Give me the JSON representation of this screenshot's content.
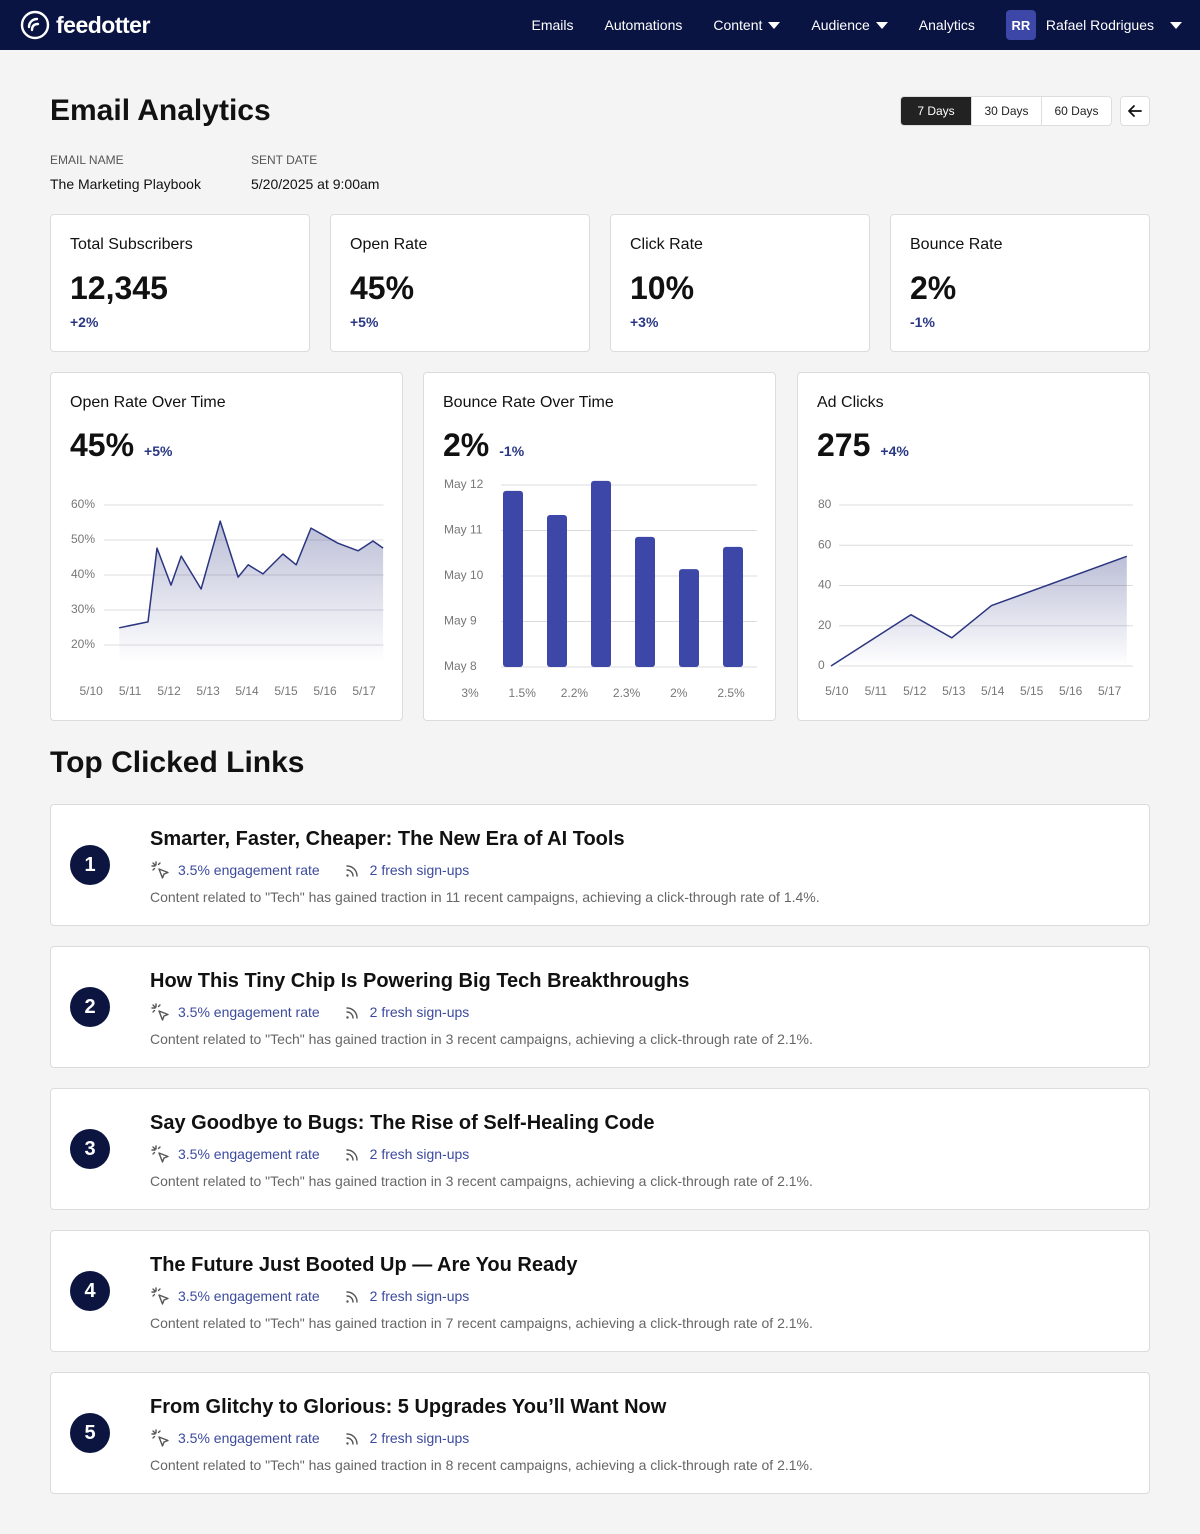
{
  "nav": {
    "logo": "feedotter",
    "items": [
      "Emails",
      "Automations",
      "Content",
      "Audience",
      "Analytics"
    ],
    "user": {
      "initials": "RR",
      "name": "Rafael Rodrigues"
    }
  },
  "header": {
    "title": "Email Analytics",
    "ranges": [
      "7 Days",
      "30 Days",
      "60 Days"
    ],
    "meta": [
      {
        "label": "EMAIL NAME",
        "value": "The Marketing Playbook"
      },
      {
        "label": "SENT DATE",
        "value": "5/20/2025 at 9:00am"
      }
    ]
  },
  "stats": [
    {
      "label": "Total Subscribers",
      "value": "12,345",
      "change": "+2%"
    },
    {
      "label": "Open Rate",
      "value": "45%",
      "change": "+5%"
    },
    {
      "label": "Click Rate",
      "value": "10%",
      "change": "+3%"
    },
    {
      "label": "Bounce Rate",
      "value": "2%",
      "change": "-1%"
    }
  ],
  "chart_data": [
    {
      "type": "area",
      "title": "Open Rate Over Time",
      "headline": "45%",
      "change": "+5%",
      "color": "#2b3580",
      "grid": true,
      "x": [
        0.72,
        1.46,
        1.69,
        2.05,
        2.31,
        2.82,
        3.31,
        3.77,
        4.03,
        4.41,
        4.92,
        5.26,
        5.64,
        6.33,
        6.85,
        7.23,
        7.49
      ],
      "values": [
        24.9,
        26.6,
        47.7,
        37.1,
        45.4,
        36,
        55.4,
        39.4,
        42.9,
        40.3,
        46,
        42.9,
        53.4,
        49.1,
        46.9,
        49.7,
        47.7
      ],
      "xlim": [
        0.33,
        7.5
      ],
      "xticks": [
        {
          "value": 0,
          "label": "5/10"
        },
        {
          "value": 1,
          "label": "5/11"
        },
        {
          "value": 2,
          "label": "5/12"
        },
        {
          "value": 3,
          "label": "5/13"
        },
        {
          "value": 4,
          "label": "5/14"
        },
        {
          "value": 5,
          "label": "5/15"
        },
        {
          "value": 6,
          "label": "5/16"
        },
        {
          "value": 7,
          "label": "5/17"
        }
      ],
      "ylim": [
        15,
        60
      ],
      "yticks": [
        {
          "value": 20,
          "label": "20%"
        },
        {
          "value": 30,
          "label": "30%"
        },
        {
          "value": 40,
          "label": "40%"
        },
        {
          "value": 50,
          "label": "50%"
        },
        {
          "value": 60,
          "label": "60%"
        }
      ]
    },
    {
      "type": "bar",
      "title": "Bounce Rate Over Time",
      "headline": "2%",
      "change": "-1%",
      "color": "#3d47a8",
      "grid": true,
      "categories": [
        "3%",
        "1.5%",
        "2.2%",
        "2.3%",
        "2%",
        "2.5%"
      ],
      "values": [
        11.87,
        11.34,
        12.09,
        10.86,
        10.15,
        10.64
      ],
      "ylim": [
        8,
        12
      ],
      "yticks": [
        {
          "value": 8,
          "label": "May  8"
        },
        {
          "value": 9,
          "label": "May 9"
        },
        {
          "value": 10,
          "label": "May 10"
        },
        {
          "value": 11,
          "label": "May 11"
        },
        {
          "value": 12,
          "label": "May 12"
        }
      ]
    },
    {
      "type": "area",
      "title": "Ad Clicks",
      "headline": "275",
      "change": "+4%",
      "color": "#2b3580",
      "grid": true,
      "x": [
        -0.15,
        1.9,
        2.95,
        3.97,
        7.44
      ],
      "values": [
        0,
        25.5,
        14,
        30,
        54.5
      ],
      "xlim": [
        -0.15,
        7.6
      ],
      "xticks": [
        {
          "value": 0,
          "label": "5/10"
        },
        {
          "value": 1,
          "label": "5/11"
        },
        {
          "value": 2,
          "label": "5/12"
        },
        {
          "value": 3,
          "label": "5/13"
        },
        {
          "value": 4,
          "label": "5/14"
        },
        {
          "value": 5,
          "label": "5/15"
        },
        {
          "value": 6,
          "label": "5/16"
        },
        {
          "value": 7,
          "label": "5/17"
        }
      ],
      "ylim": [
        0,
        80
      ],
      "yticks": [
        0,
        20,
        40,
        60,
        80
      ]
    }
  ],
  "links": {
    "title": "Top Clicked Links",
    "items": [
      {
        "rank": 1,
        "title": "Smarter, Faster, Cheaper: The New Era of AI Tools",
        "engagement": "3.5% engagement rate",
        "signups": "2 fresh sign-ups",
        "description": "Content related to \"Tech\" has gained traction in 11 recent campaigns, achieving a click-through rate of 1.4%."
      },
      {
        "rank": 2,
        "title": "How This Tiny Chip Is Powering Big Tech Breakthroughs",
        "engagement": "3.5% engagement rate",
        "signups": "2 fresh sign-ups",
        "description": "Content related to \"Tech\" has gained traction in 3 recent campaigns, achieving a click-through rate of 2.1%."
      },
      {
        "rank": 3,
        "title": "Say Goodbye to Bugs: The Rise of Self-Healing Code",
        "engagement": "3.5% engagement rate",
        "signups": "2 fresh sign-ups",
        "description": "Content related to \"Tech\" has gained traction in 3 recent campaigns, achieving a click-through rate of 2.1%."
      },
      {
        "rank": 4,
        "title": "The Future Just Booted Up — Are You Ready",
        "engagement": "3.5% engagement rate",
        "signups": "2 fresh sign-ups",
        "description": "Content related to \"Tech\" has gained traction in 7 recent campaigns, achieving a click-through rate of 2.1%."
      },
      {
        "rank": 5,
        "title": "From Glitchy to Glorious: 5 Upgrades You’ll Want Now",
        "engagement": "3.5% engagement rate",
        "signups": "2 fresh sign-ups",
        "description": "Content related to \"Tech\" has gained traction in 8 recent campaigns, achieving a click-through rate of 2.1%."
      }
    ]
  }
}
